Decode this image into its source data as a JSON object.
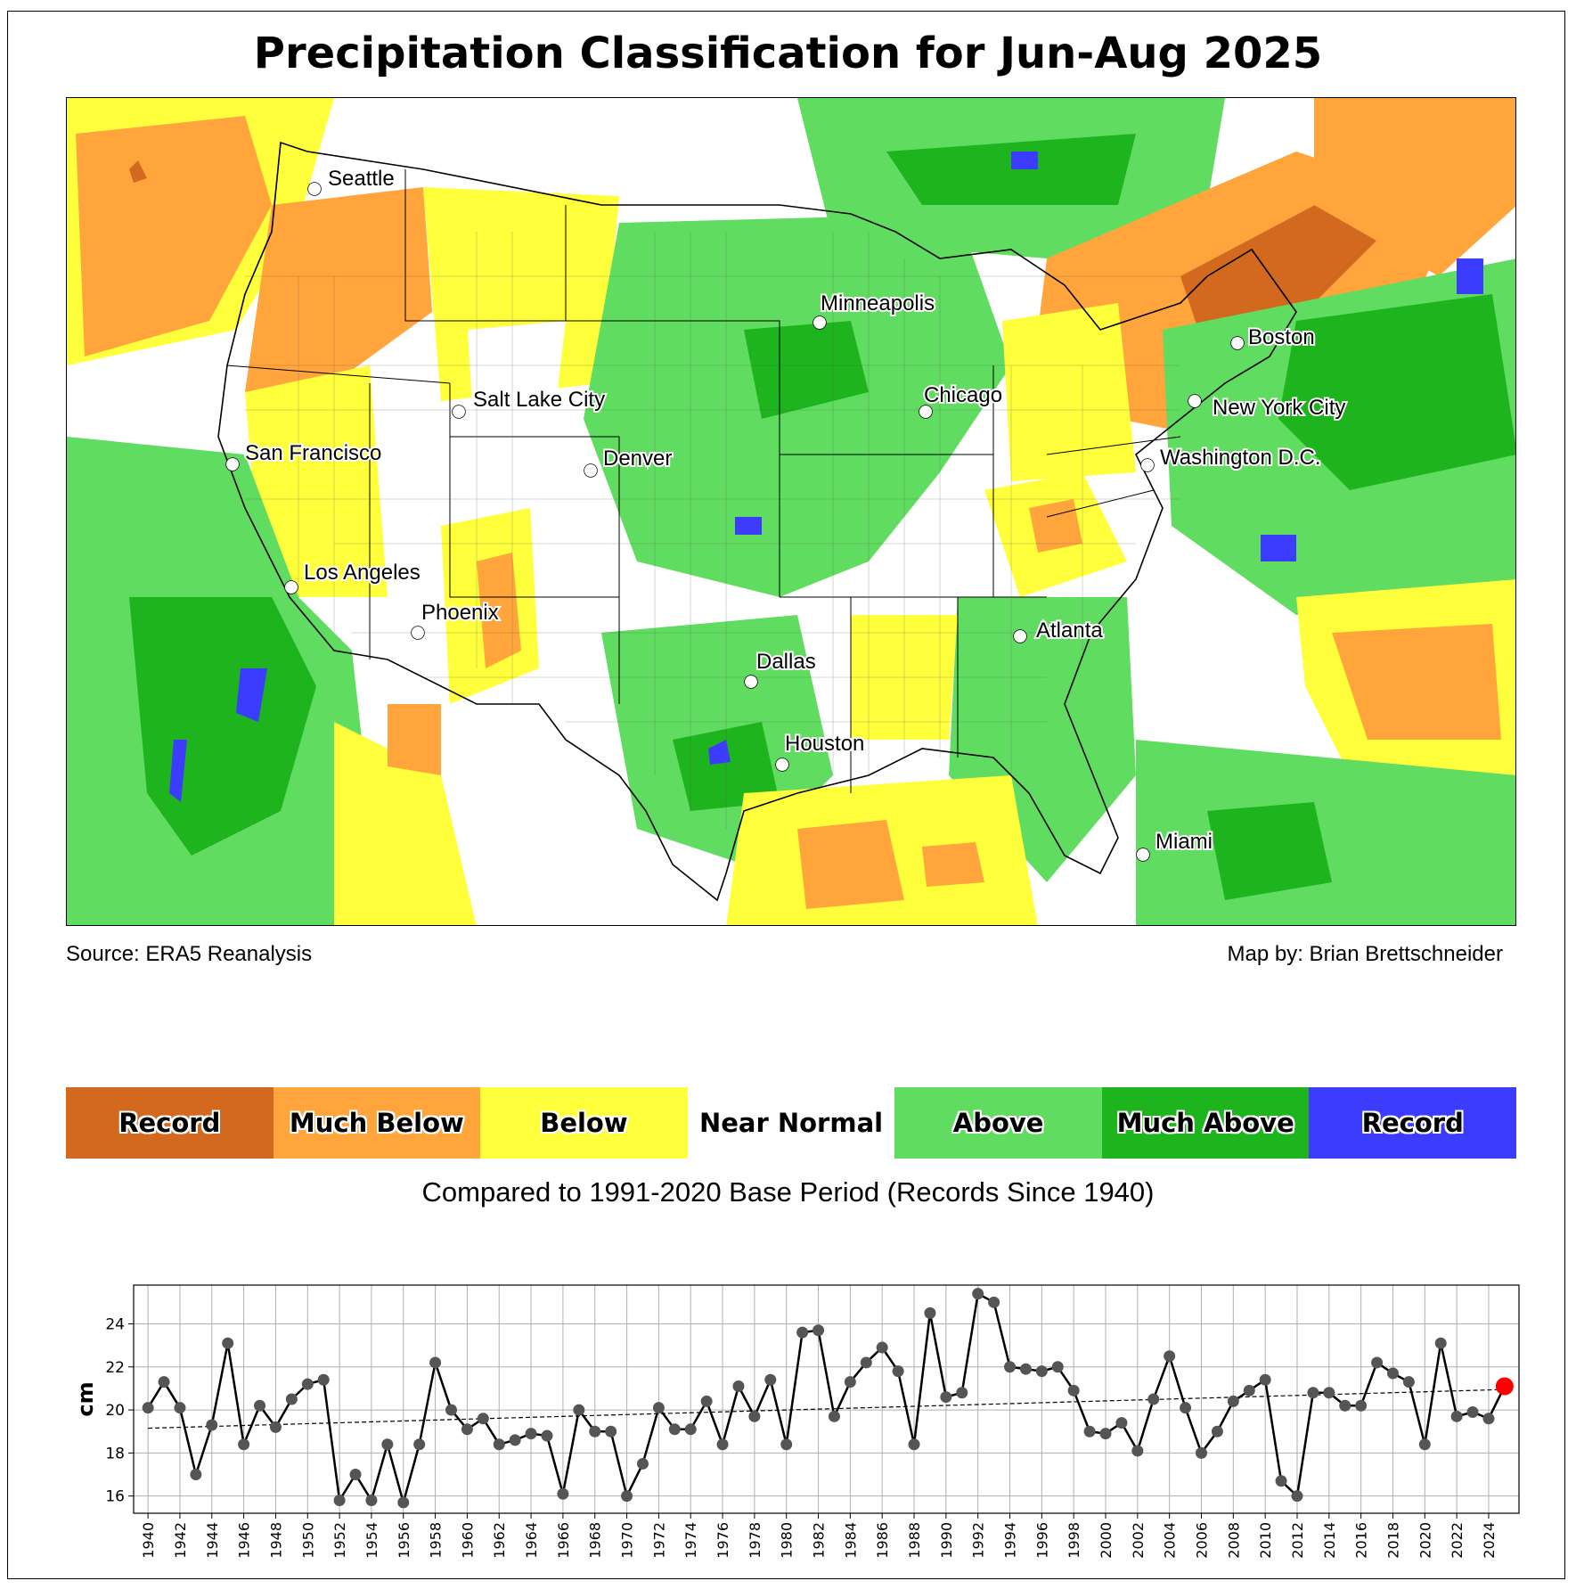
{
  "title": "Precipitation Classification for Jun-Aug 2025",
  "source_label": "Source: ERA5 Reanalysis",
  "author_label": "Map by: Brian Brettschneider",
  "cities": [
    {
      "name": "Seattle"
    },
    {
      "name": "Minneapolis"
    },
    {
      "name": "Boston"
    },
    {
      "name": "Salt Lake City"
    },
    {
      "name": "Chicago"
    },
    {
      "name": "New York City"
    },
    {
      "name": "San Francisco"
    },
    {
      "name": "Denver"
    },
    {
      "name": "Washington D.C."
    },
    {
      "name": "Los Angeles"
    },
    {
      "name": "Phoenix"
    },
    {
      "name": "Atlanta"
    },
    {
      "name": "Dallas"
    },
    {
      "name": "Houston"
    },
    {
      "name": "Miami"
    }
  ],
  "legend": [
    {
      "label": "Record",
      "color": "#d2691e"
    },
    {
      "label": "Much Below",
      "color": "#ffa53c"
    },
    {
      "label": "Below",
      "color": "#ffff3c"
    },
    {
      "label": "Near Normal",
      "color": "#ffffff"
    },
    {
      "label": "Above",
      "color": "#60dc60"
    },
    {
      "label": "Much Above",
      "color": "#1eb41e"
    },
    {
      "label": "Record",
      "color": "#3c3cff"
    }
  ],
  "caption": "Compared to 1991-2020 Base Period   (Records Since 1940)",
  "chart_data": {
    "type": "line",
    "ylabel": "cm",
    "xlabel": "",
    "ylim": [
      15.2,
      25.8
    ],
    "yticks": [
      16,
      18,
      20,
      22,
      24
    ],
    "xticks": [
      1940,
      1942,
      1944,
      1946,
      1948,
      1950,
      1952,
      1954,
      1956,
      1958,
      1960,
      1962,
      1964,
      1966,
      1968,
      1970,
      1972,
      1974,
      1976,
      1978,
      1980,
      1982,
      1984,
      1986,
      1988,
      1990,
      1992,
      1994,
      1996,
      1998,
      2000,
      2002,
      2004,
      2006,
      2008,
      2010,
      2012,
      2014,
      2016,
      2018,
      2020,
      2022,
      2024
    ],
    "x": [
      1940,
      1941,
      1942,
      1943,
      1944,
      1945,
      1946,
      1947,
      1948,
      1949,
      1950,
      1951,
      1952,
      1953,
      1954,
      1955,
      1956,
      1957,
      1958,
      1959,
      1960,
      1961,
      1962,
      1963,
      1964,
      1965,
      1966,
      1967,
      1968,
      1969,
      1970,
      1971,
      1972,
      1973,
      1974,
      1975,
      1976,
      1977,
      1978,
      1979,
      1980,
      1981,
      1982,
      1983,
      1984,
      1985,
      1986,
      1987,
      1988,
      1989,
      1990,
      1991,
      1992,
      1993,
      1994,
      1995,
      1996,
      1997,
      1998,
      1999,
      2000,
      2001,
      2002,
      2003,
      2004,
      2005,
      2006,
      2007,
      2008,
      2009,
      2010,
      2011,
      2012,
      2013,
      2014,
      2015,
      2016,
      2017,
      2018,
      2019,
      2020,
      2021,
      2022,
      2023,
      2024,
      2025
    ],
    "values": [
      20.1,
      21.3,
      20.1,
      17.0,
      19.3,
      23.1,
      18.4,
      20.2,
      19.2,
      20.5,
      21.2,
      21.4,
      15.8,
      17.0,
      15.8,
      18.4,
      15.7,
      18.4,
      22.2,
      20.0,
      19.1,
      19.6,
      18.4,
      18.6,
      18.9,
      18.8,
      16.1,
      20.0,
      19.0,
      19.0,
      16.0,
      17.5,
      20.1,
      19.1,
      19.1,
      20.4,
      18.4,
      21.1,
      19.7,
      21.4,
      18.4,
      23.6,
      23.7,
      19.7,
      21.3,
      22.2,
      22.9,
      21.8,
      18.4,
      24.5,
      20.6,
      20.8,
      25.4,
      25.0,
      22.0,
      21.9,
      21.8,
      22.0,
      20.9,
      19.0,
      18.9,
      19.4,
      18.1,
      20.5,
      22.5,
      20.1,
      18.0,
      19.0,
      20.4,
      20.9,
      21.4,
      16.7,
      16.0,
      20.8,
      20.8,
      20.2,
      20.2,
      22.2,
      21.7,
      21.3,
      18.4,
      23.1,
      19.7,
      19.9,
      19.6,
      21.1
    ],
    "trend": {
      "start": [
        1940,
        19.15
      ],
      "end": [
        2025,
        20.95
      ]
    },
    "highlight": {
      "year": 2025,
      "value": 21.1,
      "color": "#ff0000"
    },
    "series_color": "#000000",
    "marker_color": "#555555",
    "grid": true
  }
}
